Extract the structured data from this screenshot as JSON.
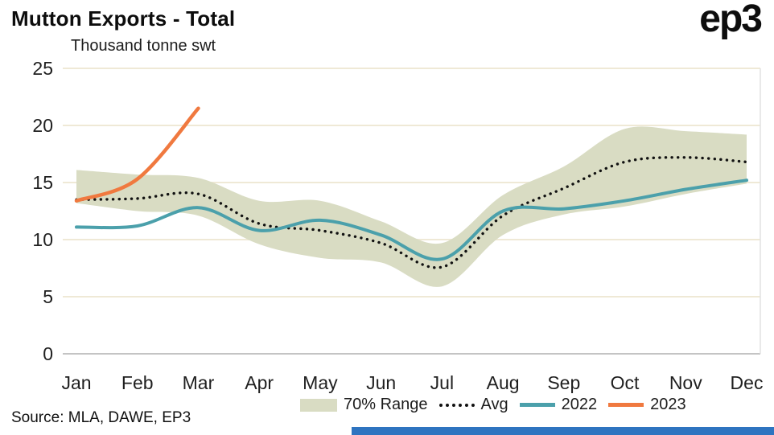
{
  "header": {
    "title": "Mutton Exports - Total",
    "logo": "ep3"
  },
  "footer": {
    "source": "Source: MLA, DAWE, EP3"
  },
  "colors": {
    "grid": "#efe9d6",
    "zero_line": "#c4c4c4",
    "right_border": "#e2e2e2",
    "text": "#1f1f1f",
    "footer_bar": "#2e74c0"
  },
  "chart_data": {
    "type": "line",
    "title": "Mutton Exports - Total",
    "ylabel": "Thousand tonne swt",
    "xlabel": "",
    "ylim": [
      0,
      25
    ],
    "yticks": [
      0,
      5,
      10,
      15,
      20,
      25
    ],
    "grid": true,
    "legend_position": "bottom",
    "categories": [
      "Jan",
      "Feb",
      "Mar",
      "Apr",
      "May",
      "Jun",
      "Jul",
      "Aug",
      "Sep",
      "Oct",
      "Nov",
      "Dec"
    ],
    "band": {
      "name": "70% Range",
      "color": "#d9dcc3",
      "upper": [
        16.1,
        15.7,
        15.4,
        13.4,
        13.4,
        11.6,
        9.7,
        13.9,
        16.4,
        19.7,
        19.5,
        19.2
      ],
      "lower": [
        13.2,
        12.5,
        12.1,
        9.6,
        8.4,
        8.0,
        5.9,
        10.4,
        12.2,
        12.9,
        14.0,
        14.9
      ]
    },
    "series": [
      {
        "name": "Avg",
        "style": "dotted",
        "color": "#111111",
        "values": [
          13.5,
          13.6,
          14.0,
          11.4,
          10.8,
          9.7,
          7.6,
          12.1,
          14.5,
          16.8,
          17.2,
          16.8
        ]
      },
      {
        "name": "2022",
        "style": "solid",
        "color": "#4ba0ab",
        "values": [
          11.1,
          11.2,
          12.8,
          10.8,
          11.7,
          10.4,
          8.3,
          12.5,
          12.7,
          13.4,
          14.4,
          15.2
        ]
      },
      {
        "name": "2023",
        "style": "solid",
        "color": "#f0793f",
        "values": [
          13.4,
          15.3,
          21.5
        ]
      }
    ]
  }
}
